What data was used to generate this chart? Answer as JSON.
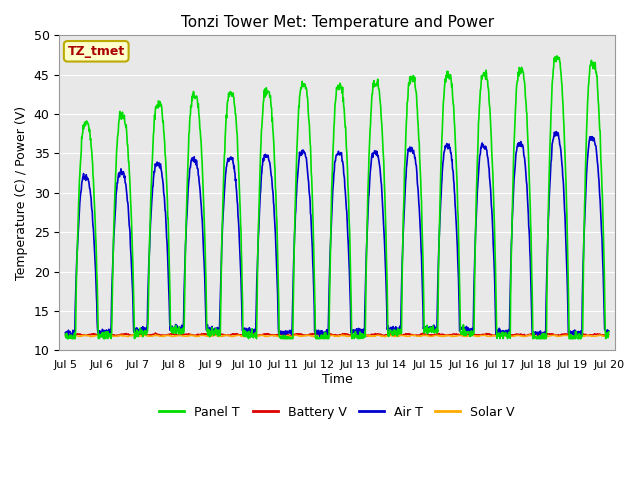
{
  "title": "Tonzi Tower Met: Temperature and Power",
  "xlabel": "Time",
  "ylabel": "Temperature (C) / Power (V)",
  "ylim": [
    10,
    50
  ],
  "xlim_days": [
    4.83,
    20.17
  ],
  "xtick_days": [
    5,
    6,
    7,
    8,
    9,
    10,
    11,
    12,
    13,
    14,
    15,
    16,
    17,
    18,
    19,
    20
  ],
  "xtick_labels": [
    "Jul 5",
    "Jul 6",
    "Jul 7",
    "Jul 8",
    "Jul 9",
    "Jul 10",
    "Jul 11",
    "Jul 12",
    "Jul 13",
    "Jul 14",
    "Jul 15",
    "Jul 16",
    "Jul 17",
    "Jul 18",
    "Jul 19",
    "Jul 20"
  ],
  "yticks": [
    10,
    15,
    20,
    25,
    30,
    35,
    40,
    45,
    50
  ],
  "panel_t_color": "#00dd00",
  "air_t_color": "#0000cc",
  "battery_v_color": "#dd0000",
  "solar_v_color": "#ffaa00",
  "background_color": "#e8e8e8",
  "annotation_text": "TZ_tmet",
  "annotation_color": "#aa0000",
  "annotation_bg": "#ffffcc",
  "annotation_border": "#bbaa00",
  "legend_labels": [
    "Panel T",
    "Battery V",
    "Air T",
    "Solar V"
  ],
  "legend_colors": [
    "#00dd00",
    "#dd0000",
    "#0000cc",
    "#ffaa00"
  ],
  "panel_night_min": 12.0,
  "air_night_min": 12.5,
  "battery_base": 12.0,
  "solar_base": 11.9
}
